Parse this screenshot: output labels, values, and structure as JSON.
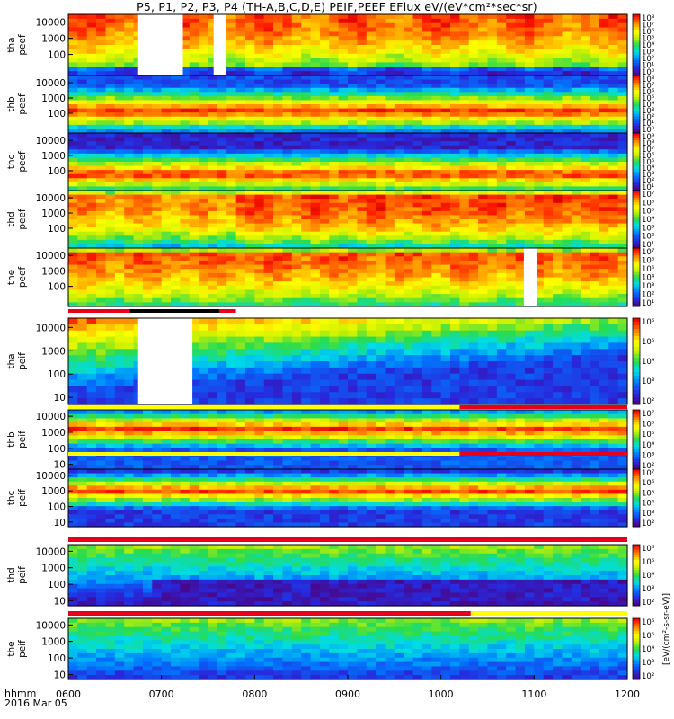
{
  "title": "P5, P1, P2, P3, P4 (TH-A,B,C,D,E) PEIF,PEEF EFlux eV/(eV*cm²*sec*sr)",
  "time_axis": {
    "caption_top": "hhmm",
    "caption_bottom": "2016 Mar 05",
    "ticks": [
      "0600",
      "0700",
      "0800",
      "0900",
      "1000",
      "1100",
      "1200"
    ]
  },
  "colorbar_unit": "[eV/(cm²-s-sr-eV)]",
  "chart_data": [
    {
      "type": "heatmap",
      "probe": "tha",
      "product": "peef",
      "ylabel": [
        "tha",
        "peef"
      ],
      "y_ticks": [
        "10000",
        "1000",
        "100"
      ],
      "yrange_ev": [
        5,
        30000
      ],
      "yscale": "log",
      "colorbar_ticks": [
        "10⁸",
        "10⁷",
        "10⁶",
        "10⁵",
        "10⁴",
        "10³",
        "10²",
        "10¹",
        "10⁰"
      ],
      "data_gaps_hhmm": [
        [
          "0650",
          "0700"
        ],
        [
          "0720",
          "0730"
        ]
      ]
    },
    {
      "type": "heatmap",
      "probe": "thb",
      "product": "peef",
      "ylabel": [
        "thb",
        "peef"
      ],
      "y_ticks": [
        "10000",
        "1000",
        "100"
      ],
      "yrange_ev": [
        5,
        30000
      ],
      "yscale": "log",
      "colorbar_ticks": [
        "10⁸",
        "10⁷",
        "10⁶",
        "10⁵",
        "10⁴",
        "10³",
        "10²",
        "10¹",
        "10⁰"
      ]
    },
    {
      "type": "heatmap",
      "probe": "thc",
      "product": "peef",
      "ylabel": [
        "thc",
        "peef"
      ],
      "y_ticks": [
        "10000",
        "1000",
        "100"
      ],
      "yrange_ev": [
        5,
        30000
      ],
      "yscale": "log",
      "colorbar_ticks": [
        "10⁹",
        "10⁸",
        "10⁷",
        "10⁶",
        "10⁵",
        "10⁴",
        "10³",
        "10²",
        "10¹"
      ]
    },
    {
      "type": "heatmap",
      "probe": "thd",
      "product": "peef",
      "ylabel": [
        "thd",
        "peef"
      ],
      "y_ticks": [
        "10000",
        "1000",
        "100"
      ],
      "yrange_ev": [
        5,
        30000
      ],
      "yscale": "log",
      "colorbar_ticks": [
        "10⁷",
        "10⁶",
        "10⁵",
        "10⁴",
        "10³",
        "10²",
        "10¹"
      ]
    },
    {
      "type": "heatmap",
      "probe": "the",
      "product": "peef",
      "ylabel": [
        "the",
        "peef"
      ],
      "y_ticks": [
        "10000",
        "1000",
        "100"
      ],
      "yrange_ev": [
        5,
        30000
      ],
      "yscale": "log",
      "colorbar_ticks": [
        "10⁷",
        "10⁶",
        "10⁵",
        "10⁴",
        "10³",
        "10²",
        "10¹"
      ],
      "data_gaps_hhmm": [
        [
          "1080",
          "1090"
        ]
      ]
    },
    {
      "type": "heatmap",
      "probe": "tha",
      "product": "peif",
      "ylabel": [
        "tha",
        "peif"
      ],
      "y_ticks": [
        "10000",
        "1000",
        "100",
        "10"
      ],
      "yrange_ev": [
        5,
        25000
      ],
      "yscale": "log",
      "colorbar_ticks": [
        "10⁶",
        "10⁵",
        "10⁴",
        "10³",
        "10²"
      ],
      "data_gaps_hhmm": [
        [
          "0650",
          "0710"
        ]
      ]
    },
    {
      "type": "heatmap",
      "probe": "thb",
      "product": "peif",
      "ylabel": [
        "thb",
        "peif"
      ],
      "y_ticks": [
        "10000",
        "1000",
        "100",
        "10"
      ],
      "yrange_ev": [
        5,
        25000
      ],
      "yscale": "log",
      "colorbar_ticks": [
        "10⁷",
        "10⁶",
        "10⁵",
        "10⁴",
        "10³",
        "10²"
      ]
    },
    {
      "type": "heatmap",
      "probe": "thc",
      "product": "peif",
      "ylabel": [
        "thc",
        "peif"
      ],
      "y_ticks": [
        "10000",
        "1000",
        "100",
        "10"
      ],
      "yrange_ev": [
        5,
        25000
      ],
      "yscale": "log",
      "colorbar_ticks": [
        "10⁷",
        "10⁶",
        "10⁵",
        "10⁴",
        "10³",
        "10²"
      ]
    },
    {
      "type": "heatmap",
      "probe": "thd",
      "product": "peif",
      "ylabel": [
        "thd",
        "peif"
      ],
      "y_ticks": [
        "10000",
        "1000",
        "100",
        "10"
      ],
      "yrange_ev": [
        5,
        25000
      ],
      "yscale": "log",
      "colorbar_ticks": [
        "10⁶",
        "10⁵",
        "10⁴",
        "10³",
        "10²"
      ]
    },
    {
      "type": "heatmap",
      "probe": "the",
      "product": "peif",
      "ylabel": [
        "the",
        "peif"
      ],
      "y_ticks": [
        "10000",
        "1000",
        "100",
        "10"
      ],
      "yrange_ev": [
        5,
        25000
      ],
      "yscale": "log",
      "colorbar_ticks": [
        "10⁶",
        "10⁵",
        "10⁴",
        "10³",
        "10²"
      ]
    }
  ],
  "colors": {
    "gap": "#ffffff",
    "mode_bar_red": "#e8001a",
    "mode_bar_yellow": "#ffff00",
    "mode_bar_black": "#000000"
  }
}
